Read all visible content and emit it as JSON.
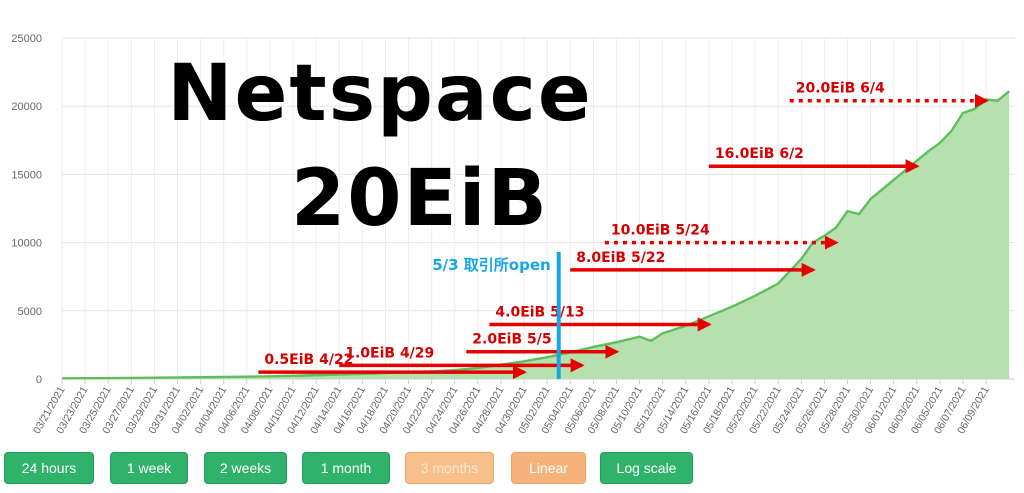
{
  "chart_data": {
    "type": "area",
    "title": "Netspace",
    "subtitle": "20EiB",
    "ylim": [
      0,
      25000
    ],
    "y_ticks": [
      0,
      5000,
      10000,
      15000,
      20000,
      25000
    ],
    "x_ticks": [
      "03/21/2021",
      "03/23/2021",
      "03/25/2021",
      "03/27/2021",
      "03/29/2021",
      "03/31/2021",
      "04/02/2021",
      "04/04/2021",
      "04/06/2021",
      "04/08/2021",
      "04/10/2021",
      "04/12/2021",
      "04/14/2021",
      "04/16/2021",
      "04/18/2021",
      "04/20/2021",
      "04/22/2021",
      "04/24/2021",
      "04/26/2021",
      "04/28/2021",
      "04/30/2021",
      "05/02/2021",
      "05/04/2021",
      "05/06/2021",
      "05/08/2021",
      "05/10/2021",
      "05/12/2021",
      "05/14/2021",
      "05/16/2021",
      "05/18/2021",
      "05/20/2021",
      "05/22/2021",
      "05/24/2021",
      "05/26/2021",
      "05/28/2021",
      "05/30/2021",
      "06/01/2021",
      "06/03/2021",
      "06/05/2021",
      "06/07/2021",
      "06/09/2021"
    ],
    "grid": true,
    "series": [
      {
        "color": "#5cbf5c",
        "fill": "#b6e0ae",
        "x": [
          "03/21/2021",
          "03/24/2021",
          "03/27/2021",
          "03/30/2021",
          "04/02/2021",
          "04/05/2021",
          "04/08/2021",
          "04/11/2021",
          "04/14/2021",
          "04/17/2021",
          "04/20/2021",
          "04/22/2021",
          "04/24/2021",
          "04/26/2021",
          "04/28/2021",
          "04/30/2021",
          "05/02/2021",
          "05/04/2021",
          "05/06/2021",
          "05/08/2021",
          "05/10/2021",
          "05/11/2021",
          "05/12/2021",
          "05/14/2021",
          "05/16/2021",
          "05/18/2021",
          "05/20/2021",
          "05/22/2021",
          "05/24/2021",
          "05/25/2021",
          "05/26/2021",
          "05/27/2021",
          "05/28/2021",
          "05/29/2021",
          "05/30/2021",
          "05/31/2021",
          "06/01/2021",
          "06/02/2021",
          "06/03/2021",
          "06/04/2021",
          "06/05/2021",
          "06/06/2021",
          "06/07/2021",
          "06/08/2021",
          "06/09/2021",
          "06/10/2021",
          "06/11/2021"
        ],
        "values": [
          50,
          60,
          80,
          100,
          130,
          160,
          200,
          260,
          330,
          400,
          500,
          560,
          650,
          800,
          1050,
          1300,
          1600,
          1950,
          2350,
          2700,
          3100,
          2800,
          3350,
          3900,
          4600,
          5300,
          6100,
          7000,
          8800,
          10000,
          10500,
          11100,
          12300,
          12100,
          13200,
          13900,
          14600,
          15300,
          16000,
          16700,
          17300,
          18200,
          19500,
          19800,
          20500,
          20400,
          21100
        ]
      }
    ],
    "annotations": [
      {
        "label": "0.5EiB 4/22",
        "arrow_from": "04/07/2021",
        "arrow_to": "04/30/2021",
        "value": 500,
        "style": "solid"
      },
      {
        "label": "1.0EiB 4/29",
        "arrow_from": "04/14/2021",
        "arrow_to": "05/05/2021",
        "value": 1000,
        "style": "solid"
      },
      {
        "label": "2.0EiB 5/5",
        "arrow_from": "04/25/2021",
        "arrow_to": "05/08/2021",
        "value": 2000,
        "style": "solid"
      },
      {
        "label": "4.0EiB 5/13",
        "arrow_from": "04/27/2021",
        "arrow_to": "05/16/2021",
        "value": 4000,
        "style": "solid"
      },
      {
        "label": "8.0EiB 5/22",
        "arrow_from": "05/04/2021",
        "arrow_to": "05/25/2021",
        "value": 8000,
        "style": "solid"
      },
      {
        "label": "10.0EiB 5/24",
        "arrow_from": "05/07/2021",
        "arrow_to": "05/27/2021",
        "value": 10000,
        "style": "dotted"
      },
      {
        "label": "16.0EiB 6/2",
        "arrow_from": "05/16/2021",
        "arrow_to": "06/03/2021",
        "value": 15600,
        "style": "solid"
      },
      {
        "label": "20.0EiB 6/4",
        "arrow_from": "05/23/2021",
        "arrow_to": "06/09/2021",
        "value": 20400,
        "style": "dotted"
      }
    ],
    "marker": {
      "label": "5/3 取引所open",
      "date": "05/03/2021",
      "color": "#16a6e6"
    }
  },
  "buttons": [
    {
      "label": "24 hours",
      "style": "green"
    },
    {
      "label": "1 week",
      "style": "green"
    },
    {
      "label": "2 weeks",
      "style": "green"
    },
    {
      "label": "1 month",
      "style": "green"
    },
    {
      "label": "3 months",
      "style": "orange-active"
    },
    {
      "label": "Linear",
      "style": "orange"
    },
    {
      "label": "Log scale",
      "style": "green"
    }
  ]
}
